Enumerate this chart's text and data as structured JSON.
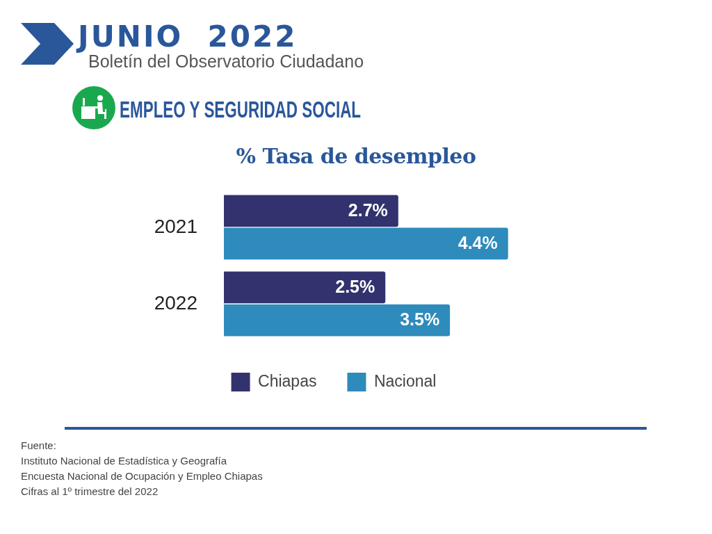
{
  "chart_data": {
    "type": "bar",
    "orientation": "horizontal",
    "title": "% Tasa de desempleo",
    "categories": [
      "2021",
      "2022"
    ],
    "series": [
      {
        "name": "Chiapas",
        "color": "#32326e",
        "values": [
          2.7,
          2.5
        ],
        "value_labels": [
          "2.7%",
          "2.5%"
        ]
      },
      {
        "name": "Nacional",
        "color": "#2e8bbc",
        "values": [
          4.4,
          3.5
        ],
        "value_labels": [
          "4.4%",
          "3.5%"
        ]
      }
    ],
    "legend": "bottom",
    "tick_labels": "y",
    "annotations": [
      "JUNIO  2022",
      "Boletín del Observatorio Ciudadano",
      "EMPLEO Y SEGURIDAD SOCIAL",
      "Fuente:",
      "Instituto Nacional de Estadística y Geografía",
      "Encuesta Nacional de Ocupación y Empleo Chiapas",
      "Cifras al 1º trimestre del 2022"
    ]
  }
}
